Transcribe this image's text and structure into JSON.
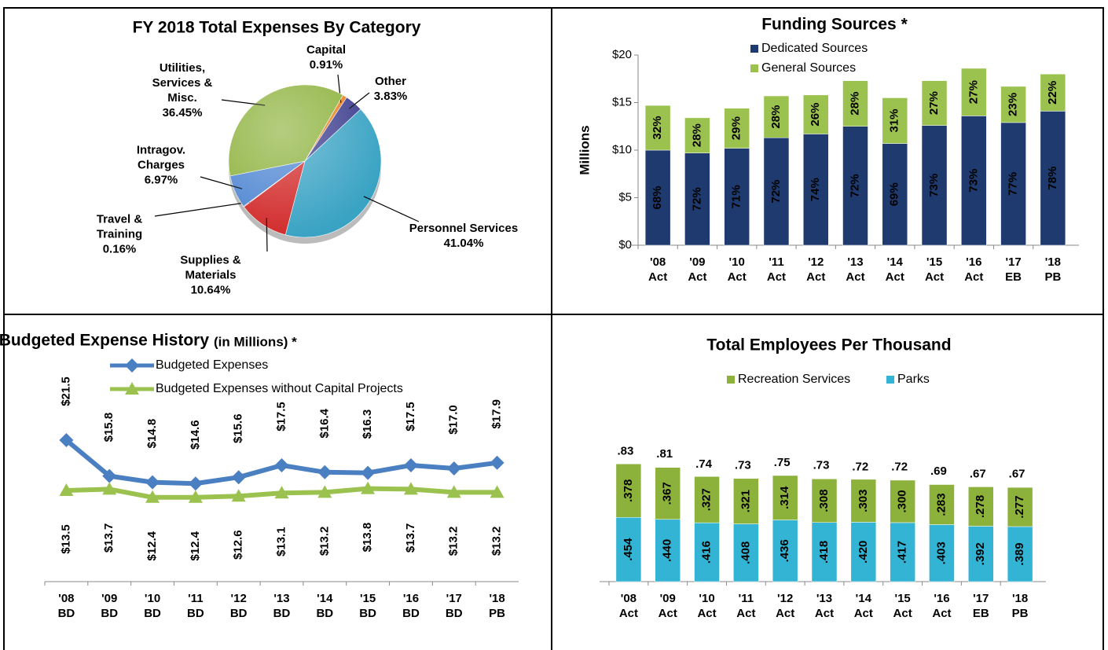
{
  "chart_data": [
    {
      "type": "pie",
      "title": "FY 2018 Total Expenses By Category",
      "categories": [
        "Capital",
        "Other",
        "Personnel Services",
        "Supplies & Materials",
        "Travel & Training",
        "Intragov. Charges",
        "Utilities, Services & Misc."
      ],
      "values": [
        0.91,
        3.83,
        41.04,
        10.64,
        0.16,
        6.97,
        36.45
      ],
      "value_labels": [
        "0.91%",
        "3.83%",
        "41.04%",
        "10.64%",
        "0.16%",
        "6.97%",
        "36.45%"
      ],
      "colors": [
        "#e8801e",
        "#3d3d8f",
        "#3aa3c4",
        "#d22b2b",
        "#b03a2e",
        "#4f86d2",
        "#8db23c"
      ]
    },
    {
      "type": "bar",
      "stacked": true,
      "title": "Funding Sources *",
      "ylabel": "Millions",
      "categories": [
        "'08 Act",
        "'09 Act",
        "'10 Act",
        "'11 Act",
        "'12 Act",
        "'13 Act",
        "'14 Act",
        "'15 Act",
        "'16 Act",
        "'17 EB",
        "'18 PB"
      ],
      "series": [
        {
          "name": "Dedicated Sources",
          "color": "#1f3a6e",
          "values": [
            10.0,
            9.7,
            10.2,
            11.3,
            11.7,
            12.5,
            10.7,
            12.6,
            13.6,
            12.9,
            14.1
          ],
          "share_labels": [
            "68%",
            "72%",
            "71%",
            "72%",
            "74%",
            "72%",
            "69%",
            "73%",
            "73%",
            "77%",
            "78%"
          ]
        },
        {
          "name": "General Sources",
          "color": "#9bc24f",
          "values": [
            4.7,
            3.7,
            4.2,
            4.4,
            4.1,
            4.8,
            4.8,
            4.7,
            5.0,
            3.8,
            3.9
          ],
          "share_labels": [
            "32%",
            "28%",
            "29%",
            "28%",
            "26%",
            "28%",
            "31%",
            "27%",
            "27%",
            "23%",
            "22%"
          ]
        }
      ],
      "ylim": [
        0,
        20
      ],
      "yticks": [
        {
          "value": 0,
          "label": "$0"
        },
        {
          "value": 5,
          "label": "$5"
        },
        {
          "value": 10,
          "label": "$10"
        },
        {
          "value": 15,
          "label": "$15"
        },
        {
          "value": 20,
          "label": "$20"
        }
      ]
    },
    {
      "type": "line",
      "title": "Budgeted Expense History",
      "subtitle": "(in Millions) *",
      "categories": [
        "'08 BD",
        "'09 BD",
        "'10 BD",
        "'11 BD",
        "'12 BD",
        "'13 BD",
        "'14 BD",
        "'15 BD",
        "'16 BD",
        "'17 BD",
        "'18 PB"
      ],
      "series": [
        {
          "name": "Budgeted Expenses",
          "color": "#4a7fc1",
          "marker": "diamond",
          "values": [
            21.5,
            15.8,
            14.8,
            14.6,
            15.6,
            17.5,
            16.4,
            16.3,
            17.5,
            17.0,
            17.9
          ],
          "value_labels": [
            "$21.5",
            "$15.8",
            "$14.8",
            "$14.6",
            "$15.6",
            "$17.5",
            "$16.4",
            "$16.3",
            "$17.5",
            "$17.0",
            "$17.9"
          ]
        },
        {
          "name": "Budgeted Expenses without Capital Projects",
          "color": "#9bc24f",
          "marker": "triangle",
          "values": [
            13.5,
            13.7,
            12.4,
            12.4,
            12.6,
            13.1,
            13.2,
            13.8,
            13.7,
            13.2,
            13.2
          ],
          "value_labels": [
            "$13.5",
            "$13.7",
            "$12.4",
            "$12.4",
            "$12.6",
            "$13.1",
            "$13.2",
            "$13.8",
            "$13.7",
            "$13.2",
            "$13.2"
          ]
        }
      ],
      "ylim": [
        -1,
        30
      ]
    },
    {
      "type": "bar",
      "stacked": true,
      "title": "Total Employees Per Thousand",
      "categories": [
        "'08 Act",
        "'09 Act",
        "'10 Act",
        "'11 Act",
        "'12 Act",
        "'13 Act",
        "'14 Act",
        "'15 Act",
        "'16 Act",
        "'17 EB",
        "'18 PB"
      ],
      "series": [
        {
          "name": "Parks",
          "color": "#33b4d4",
          "values": [
            0.454,
            0.44,
            0.416,
            0.408,
            0.436,
            0.418,
            0.42,
            0.417,
            0.403,
            0.392,
            0.389
          ],
          "value_labels": [
            ".454",
            ".440",
            ".416",
            ".408",
            ".436",
            ".418",
            ".420",
            ".417",
            ".403",
            ".392",
            ".389"
          ]
        },
        {
          "name": "Recreation Services",
          "color": "#8db23c",
          "values": [
            0.378,
            0.367,
            0.327,
            0.321,
            0.314,
            0.308,
            0.303,
            0.3,
            0.283,
            0.278,
            0.277
          ],
          "value_labels": [
            ".378",
            ".367",
            ".327",
            ".321",
            ".314",
            ".308",
            ".303",
            ".300",
            ".283",
            ".278",
            ".277"
          ]
        }
      ],
      "totals": [
        0.83,
        0.81,
        0.74,
        0.73,
        0.75,
        0.73,
        0.72,
        0.72,
        0.69,
        0.67,
        0.67
      ],
      "total_labels": [
        ".83",
        ".81",
        ".74",
        ".73",
        ".75",
        ".73",
        ".72",
        ".72",
        ".69",
        ".67",
        ".67"
      ],
      "ylim": [
        0,
        1
      ]
    }
  ]
}
